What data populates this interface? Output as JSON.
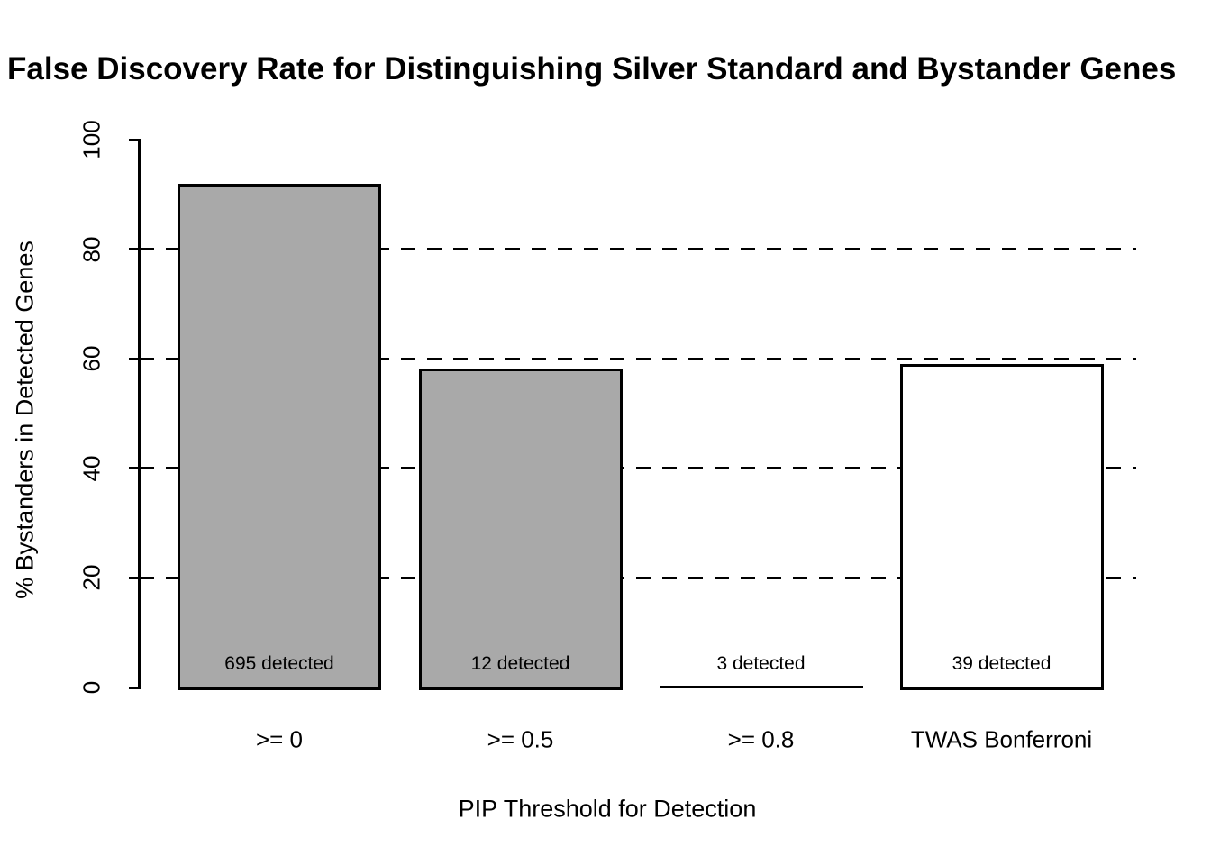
{
  "title": "False Discovery Rate for Distinguishing Silver Standard and Bystander Genes",
  "chart_data": {
    "type": "bar",
    "title": "False Discovery Rate for Distinguishing Silver Standard and Bystander Genes",
    "xlabel": "PIP Threshold for Detection",
    "ylabel": "% Bystanders in Detected Genes",
    "categories": [
      ">= 0",
      ">= 0.5",
      ">= 0.8",
      "TWAS Bonferroni"
    ],
    "values": [
      91.9,
      58.3,
      0,
      59.0
    ],
    "bar_labels": [
      "695 detected",
      "12 detected",
      "3 detected",
      "39 detected"
    ],
    "bar_colors": [
      "#a9a9a9",
      "#a9a9a9",
      "#a9a9a9",
      "#ffffff"
    ],
    "bar_border_color": "#000000",
    "ylim": [
      0,
      100
    ],
    "yticks": [
      "0",
      "20",
      "40",
      "60",
      "80",
      "100"
    ],
    "gridlines": {
      "values": [
        20,
        40,
        60,
        80
      ],
      "style": "dashed",
      "color": "#000000"
    },
    "legend_position": "none"
  }
}
